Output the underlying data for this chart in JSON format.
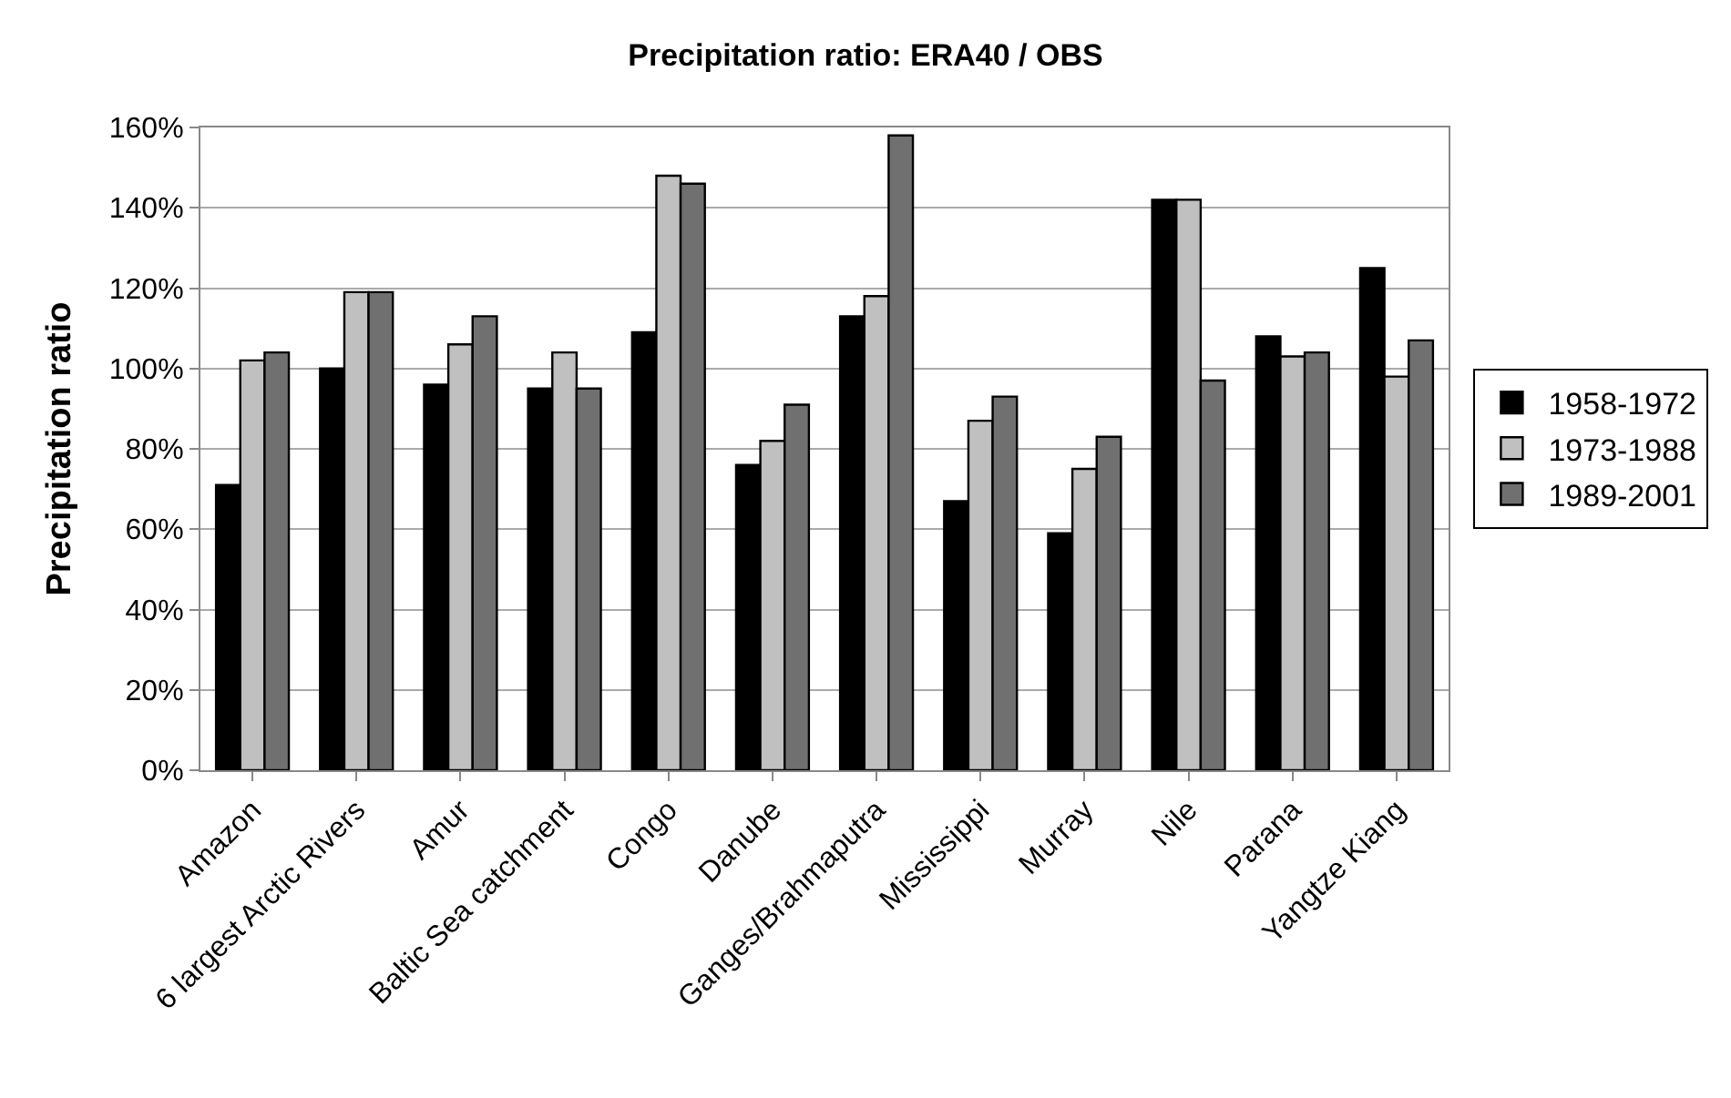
{
  "chart_data": {
    "type": "bar",
    "title": "Precipitation ratio: ERA40 / OBS",
    "ylabel": "Precipitation ratio",
    "categories": [
      "Amazon",
      "6 largest Arctic Rivers",
      "Amur",
      "Baltic Sea catchment",
      "Congo",
      "Danube",
      "Ganges/Brahmaputra",
      "Mississippi",
      "Murray",
      "Nile",
      "Parana",
      "Yangtze Kiang"
    ],
    "series": [
      {
        "name": "1958-1972",
        "color": "#000000",
        "values": [
          71,
          100,
          96,
          95,
          109,
          76,
          113,
          67,
          59,
          142,
          108,
          125
        ]
      },
      {
        "name": "1973-1988",
        "color": "#c0c0c0",
        "values": [
          102,
          119,
          106,
          104,
          148,
          82,
          118,
          87,
          75,
          142,
          103,
          98
        ]
      },
      {
        "name": "1989-2001",
        "color": "#707070",
        "values": [
          104,
          119,
          113,
          95,
          146,
          91,
          158,
          93,
          83,
          97,
          104,
          107
        ]
      }
    ],
    "ylim": [
      0,
      160
    ],
    "yticks": [
      {
        "value": 0,
        "label": "0%"
      },
      {
        "value": 20,
        "label": "20%"
      },
      {
        "value": 40,
        "label": "40%"
      },
      {
        "value": 60,
        "label": "60%"
      },
      {
        "value": 80,
        "label": "80%"
      },
      {
        "value": 100,
        "label": "100%"
      },
      {
        "value": 120,
        "label": "120%"
      },
      {
        "value": 140,
        "label": "140%"
      },
      {
        "value": 160,
        "label": "160%"
      }
    ],
    "grid": "y",
    "legend": "right"
  }
}
